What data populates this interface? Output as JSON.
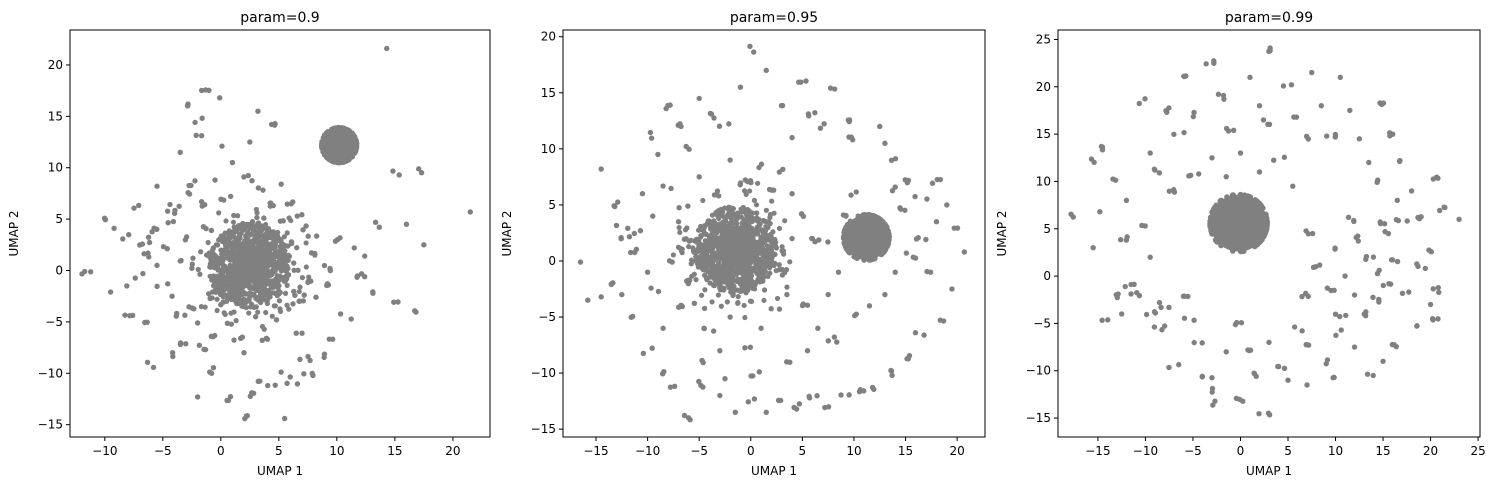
{
  "chart_data": [
    {
      "type": "scatter",
      "title": "param=0.9",
      "xlabel": "UMAP 1",
      "ylabel": "UMAP 2",
      "xlim": [
        -13,
        23.2
      ],
      "ylim": [
        -16.2,
        23.4
      ],
      "xticks": [
        -10,
        -5,
        0,
        5,
        10,
        15,
        20
      ],
      "yticks": [
        -15,
        -10,
        -5,
        0,
        5,
        10,
        15,
        20
      ],
      "marker_color": "#808080",
      "clusters": [
        {
          "center": [
            2.5,
            0.5
          ],
          "radius": 2.8,
          "density": "dense"
        },
        {
          "center": [
            10.2,
            12.2
          ],
          "radius": 1.5,
          "density": "solid"
        }
      ],
      "points": [
        [
          -11.5,
          -0.1
        ],
        [
          -10,
          5.2
        ],
        [
          -9.2,
          4.1
        ],
        [
          -8.1,
          3.3
        ],
        [
          -7.5,
          6.1
        ],
        [
          -6.6,
          3
        ],
        [
          -5.5,
          8.2
        ],
        [
          -4.8,
          2.1
        ],
        [
          -4.1,
          5.6
        ],
        [
          -3.5,
          11.5
        ],
        [
          -3,
          7.5
        ],
        [
          -2.4,
          1.2
        ],
        [
          -1.2,
          6.5
        ],
        [
          -0.5,
          8.8
        ],
        [
          0.1,
          12.1
        ],
        [
          1,
          10.5
        ],
        [
          -1.9,
          13.2
        ],
        [
          -1.2,
          17.4
        ],
        [
          -2.8,
          16.2
        ],
        [
          -1.8,
          14.6
        ],
        [
          -0.1,
          16.8
        ],
        [
          3.2,
          15.5
        ],
        [
          2.5,
          12.5
        ],
        [
          4.2,
          14
        ],
        [
          5.2,
          8.4
        ],
        [
          6,
          6.5
        ],
        [
          7.1,
          4.2
        ],
        [
          8.1,
          1.5
        ],
        [
          9.3,
          -1.3
        ],
        [
          10.2,
          3.1
        ],
        [
          11.5,
          2.2
        ],
        [
          12.1,
          -0.5
        ],
        [
          13,
          -2.1
        ],
        [
          12.4,
          1.4
        ],
        [
          13.5,
          4.5
        ],
        [
          15,
          -3.2
        ],
        [
          16,
          4.5
        ],
        [
          17.2,
          9.8
        ],
        [
          17.5,
          2.5
        ],
        [
          15.3,
          9.5
        ],
        [
          16.3,
          -4.2
        ],
        [
          21.5,
          5.7
        ],
        [
          14.3,
          21.6
        ],
        [
          12.4,
          -0.6
        ],
        [
          10.8,
          -4.5
        ],
        [
          9.5,
          -6.5
        ],
        [
          8.5,
          -8.2
        ],
        [
          7.3,
          -8.5
        ],
        [
          6.5,
          -6.1
        ],
        [
          5.5,
          -10.1
        ],
        [
          4.2,
          -11.2
        ],
        [
          3.1,
          -10.5
        ],
        [
          2.1,
          -14.3
        ],
        [
          5.5,
          -14.4
        ],
        [
          0.5,
          -12.5
        ],
        [
          -1,
          -9.7
        ],
        [
          -2,
          -12.3
        ],
        [
          -3.2,
          -7.2
        ],
        [
          -4.6,
          -8.2
        ],
        [
          -6,
          -9.2
        ],
        [
          -6.5,
          -5.1
        ],
        [
          -8,
          -4.6
        ],
        [
          -9.5,
          -2.1
        ],
        [
          -8.1,
          -1.5
        ],
        [
          -4.2,
          -2.5
        ],
        [
          -3.5,
          -4.2
        ],
        [
          -2,
          -5.1
        ],
        [
          -1,
          -6.2
        ],
        [
          0.5,
          -3.2
        ],
        [
          -0.5,
          -2.6
        ],
        [
          6.5,
          -3.1
        ],
        [
          7.5,
          -1.1
        ],
        [
          8.2,
          -2.6
        ],
        [
          6,
          2.6
        ],
        [
          7,
          -6.1
        ],
        [
          4,
          -6.5
        ],
        [
          2,
          -8
        ],
        [
          1,
          -5.2
        ],
        [
          3,
          -4.5
        ],
        [
          -5.5,
          0.5
        ],
        [
          -6.5,
          1.5
        ],
        [
          -7.2,
          -0.5
        ],
        [
          -3,
          3
        ],
        [
          -2,
          0.5
        ],
        [
          -1,
          4
        ],
        [
          0,
          -1
        ],
        [
          5.5,
          5
        ],
        [
          6.5,
          5.5
        ],
        [
          4.5,
          6.5
        ],
        [
          3.5,
          5
        ],
        [
          -3.8,
          0.8
        ],
        [
          -5,
          -1.5
        ],
        [
          -2.5,
          -3.5
        ],
        [
          0.8,
          2.8
        ],
        [
          -6,
          4
        ],
        [
          -7,
          2.5
        ],
        [
          -4.5,
          4.5
        ],
        [
          7.8,
          3.2
        ],
        [
          9,
          0.2
        ],
        [
          5.8,
          0.5
        ],
        [
          6.8,
          -2.2
        ],
        [
          4.8,
          -4.8
        ],
        [
          1.5,
          -6.5
        ],
        [
          -1.5,
          -7.5
        ],
        [
          -0.8,
          -10
        ],
        [
          2.8,
          -12
        ],
        [
          6.2,
          -11
        ],
        [
          7.5,
          -10.2
        ],
        [
          -4,
          6.5
        ],
        [
          -2.5,
          8.5
        ],
        [
          0.5,
          7
        ],
        [
          2.2,
          9
        ],
        [
          3.2,
          7.8
        ]
      ]
    },
    {
      "type": "scatter",
      "title": "param=0.95",
      "xlabel": "UMAP 1",
      "ylabel": "UMAP 2",
      "xlim": [
        -18.2,
        22.7
      ],
      "ylim": [
        -15.7,
        20.6
      ],
      "xticks": [
        -15,
        -10,
        -5,
        0,
        5,
        10,
        15,
        20
      ],
      "yticks": [
        -15,
        -10,
        -5,
        0,
        5,
        10,
        15,
        20
      ],
      "marker_color": "#808080",
      "clusters": [
        {
          "center": [
            -1.5,
            1
          ],
          "radius": 3.2,
          "density": "dense"
        },
        {
          "center": [
            11.2,
            2.1
          ],
          "radius": 2.2,
          "density": "solid"
        }
      ],
      "points": [
        [
          -16.5,
          -0.1
        ],
        [
          -15.8,
          -3.5
        ],
        [
          -14.5,
          8.2
        ],
        [
          -13,
          5.1
        ],
        [
          -12.5,
          3
        ],
        [
          -11.2,
          2.5
        ],
        [
          -10,
          11.2
        ],
        [
          -9,
          9.5
        ],
        [
          -8,
          13.8
        ],
        [
          -7.2,
          12
        ],
        [
          -6,
          10
        ],
        [
          -5,
          14.5
        ],
        [
          -4,
          13
        ],
        [
          -2.5,
          12
        ],
        [
          -1,
          15.5
        ],
        [
          0,
          18.9
        ],
        [
          1.5,
          17
        ],
        [
          3,
          14
        ],
        [
          4,
          11
        ],
        [
          5,
          16
        ],
        [
          6,
          13
        ],
        [
          7,
          12
        ],
        [
          8,
          15.5
        ],
        [
          9,
          12.5
        ],
        [
          10,
          11
        ],
        [
          12.5,
          12
        ],
        [
          13,
          10.5
        ],
        [
          14,
          9
        ],
        [
          15,
          7
        ],
        [
          16.5,
          5.5
        ],
        [
          18,
          7
        ],
        [
          19,
          5
        ],
        [
          20,
          3
        ],
        [
          20.7,
          0.8
        ],
        [
          19.5,
          -2.5
        ],
        [
          18.5,
          -5.5
        ],
        [
          16.5,
          -6.5
        ],
        [
          15,
          -8.5
        ],
        [
          13.5,
          -10
        ],
        [
          12,
          -11.5
        ],
        [
          10.5,
          -11.5
        ],
        [
          9,
          -12
        ],
        [
          7.5,
          -13
        ],
        [
          6,
          -12
        ],
        [
          4.5,
          -13
        ],
        [
          3,
          -12.5
        ],
        [
          1.5,
          -13.5
        ],
        [
          0,
          -12.5
        ],
        [
          -1.5,
          -13.5
        ],
        [
          -3,
          -12
        ],
        [
          -4.5,
          -11
        ],
        [
          -6,
          -14
        ],
        [
          -7.5,
          -11
        ],
        [
          -9,
          -10
        ],
        [
          -10,
          -8
        ],
        [
          -11.2,
          -5
        ],
        [
          -12.5,
          -3
        ],
        [
          -13.5,
          -2
        ],
        [
          -14.5,
          -3.2
        ],
        [
          -12,
          2
        ],
        [
          -10,
          -1
        ],
        [
          -8,
          0
        ],
        [
          -6.5,
          -2
        ],
        [
          -5,
          -4
        ],
        [
          -4,
          -6
        ],
        [
          -3,
          -8
        ],
        [
          -2,
          -5
        ],
        [
          -0.5,
          -7.5
        ],
        [
          1,
          -6
        ],
        [
          2.5,
          -4.5
        ],
        [
          3.5,
          -3
        ],
        [
          5,
          -4
        ],
        [
          6.5,
          -6
        ],
        [
          7.5,
          -3
        ],
        [
          8.5,
          -1
        ],
        [
          6,
          1.8
        ],
        [
          7,
          1.8
        ],
        [
          5,
          4
        ],
        [
          4,
          6
        ],
        [
          3,
          8
        ],
        [
          2,
          6.5
        ],
        [
          1,
          8.5
        ],
        [
          -0.5,
          7
        ],
        [
          -2,
          9
        ],
        [
          -3.5,
          6
        ],
        [
          -5,
          7.5
        ],
        [
          -6.5,
          5
        ],
        [
          -8,
          6.5
        ],
        [
          -9.5,
          4
        ],
        [
          -10.5,
          6
        ],
        [
          -11.5,
          1
        ],
        [
          -7,
          -4
        ],
        [
          -8.5,
          -6
        ],
        [
          -9.5,
          -2.5
        ],
        [
          -4.5,
          -9
        ],
        [
          -2.5,
          -10.5
        ],
        [
          0.5,
          -10
        ],
        [
          3.5,
          -9
        ],
        [
          5.5,
          -8
        ],
        [
          8,
          -7
        ],
        [
          10,
          -5
        ],
        [
          11.5,
          -4
        ],
        [
          13,
          -3
        ],
        [
          14,
          -1
        ],
        [
          15.5,
          0.5
        ],
        [
          16.5,
          2
        ],
        [
          17.5,
          -1
        ],
        [
          18,
          3.5
        ],
        [
          14.5,
          4.5
        ],
        [
          13.5,
          6.5
        ],
        [
          10,
          6
        ],
        [
          9,
          4
        ],
        [
          2,
          1
        ],
        [
          3,
          -1
        ],
        [
          4,
          2
        ],
        [
          1.5,
          3.5
        ],
        [
          -6,
          2
        ],
        [
          -7,
          3.5
        ],
        [
          -4.5,
          3
        ],
        [
          -5.5,
          0
        ]
      ]
    },
    {
      "type": "scatter",
      "title": "param=0.99",
      "xlabel": "UMAP 1",
      "ylabel": "UMAP 2",
      "xlim": [
        -19.2,
        25.2
      ],
      "ylim": [
        -17,
        26
      ],
      "xticks": [
        -15,
        -10,
        -5,
        0,
        5,
        10,
        15,
        20,
        25
      ],
      "yticks": [
        -15,
        -10,
        -5,
        0,
        5,
        10,
        15,
        20,
        25
      ],
      "marker_color": "#808080",
      "clusters": [
        {
          "center": [
            -0.2,
            5.6
          ],
          "radius": 3,
          "density": "solid"
        }
      ],
      "points": [
        [
          -17.3,
          6.5
        ],
        [
          -15.5,
          3
        ],
        [
          -14.8,
          6.8
        ],
        [
          -15.8,
          12.2
        ],
        [
          -14.8,
          13.5
        ],
        [
          -13,
          10
        ],
        [
          -12,
          8
        ],
        [
          -12,
          4
        ],
        [
          -11.7,
          -1
        ],
        [
          -12.5,
          -4
        ],
        [
          -14.5,
          -4.8
        ],
        [
          -10.2,
          18.5
        ],
        [
          -9.5,
          13
        ],
        [
          -8.5,
          11
        ],
        [
          -7.5,
          17.5
        ],
        [
          -6.5,
          15
        ],
        [
          -5.5,
          21
        ],
        [
          -4.5,
          17
        ],
        [
          -3.2,
          22.5
        ],
        [
          -2,
          19
        ],
        [
          -1,
          15.5
        ],
        [
          0,
          13
        ],
        [
          1,
          21
        ],
        [
          2,
          18
        ],
        [
          3,
          16.2
        ],
        [
          3.5,
          24
        ],
        [
          5,
          20
        ],
        [
          6,
          17
        ],
        [
          7,
          14.5
        ],
        [
          7.5,
          21.5
        ],
        [
          8.5,
          18
        ],
        [
          9.5,
          15
        ],
        [
          10.5,
          21
        ],
        [
          11.5,
          17.5
        ],
        [
          12.5,
          14.5
        ],
        [
          13.5,
          12
        ],
        [
          14.5,
          10
        ],
        [
          15,
          18
        ],
        [
          16,
          15
        ],
        [
          17,
          12
        ],
        [
          18,
          9
        ],
        [
          18.7,
          6
        ],
        [
          19.5,
          2.5
        ],
        [
          20.5,
          -1.5
        ],
        [
          20.8,
          -4.5
        ],
        [
          20.5,
          10.5
        ],
        [
          21.5,
          7
        ],
        [
          23,
          6
        ],
        [
          16.5,
          -7.5
        ],
        [
          15,
          -9
        ],
        [
          13.8,
          -10.5
        ],
        [
          12,
          -7.5
        ],
        [
          10.5,
          -6
        ],
        [
          9,
          -9
        ],
        [
          7.5,
          -7.5
        ],
        [
          6,
          -5.5
        ],
        [
          4.5,
          -9.5
        ],
        [
          3,
          -7
        ],
        [
          1.5,
          -10.5
        ],
        [
          0.5,
          -8
        ],
        [
          -0.5,
          -5
        ],
        [
          -1.5,
          -8
        ],
        [
          -2.5,
          -12
        ],
        [
          -3.5,
          -10.5
        ],
        [
          -4.5,
          -7
        ],
        [
          -5.5,
          -4.5
        ],
        [
          -7,
          -9.5
        ],
        [
          -8.5,
          -5.5
        ],
        [
          -9.5,
          -4
        ],
        [
          -11,
          -1.8
        ],
        [
          -13,
          -2
        ],
        [
          -8,
          -3
        ],
        [
          -6,
          -2.2
        ],
        [
          -3,
          -13.5
        ],
        [
          0,
          -13
        ],
        [
          2.5,
          -14.8
        ],
        [
          5,
          -11
        ],
        [
          7,
          -11.5
        ],
        [
          10,
          -10.5
        ],
        [
          10.5,
          -4
        ],
        [
          12,
          -2
        ],
        [
          11,
          0
        ],
        [
          13.5,
          2
        ],
        [
          14.5,
          0.5
        ],
        [
          15.5,
          -1
        ],
        [
          16.5,
          1.5
        ],
        [
          17.5,
          -2
        ],
        [
          15.5,
          4.5
        ],
        [
          17,
          6
        ],
        [
          16.5,
          8
        ],
        [
          15,
          5.5
        ],
        [
          12.8,
          4
        ],
        [
          12,
          6
        ],
        [
          10.5,
          3
        ],
        [
          9.5,
          -1.5
        ],
        [
          8,
          1
        ],
        [
          6.5,
          -2
        ],
        [
          7,
          4.5
        ],
        [
          13,
          -4
        ],
        [
          14,
          -2.5
        ],
        [
          18.5,
          -5.5
        ],
        [
          19,
          1
        ],
        [
          20,
          -3
        ],
        [
          -9.5,
          2
        ],
        [
          -10.5,
          5.5
        ],
        [
          -7.5,
          9
        ],
        [
          -5,
          10.5
        ],
        [
          -3,
          12.5
        ],
        [
          -1.5,
          10.5
        ],
        [
          2,
          11
        ],
        [
          4,
          12.5
        ],
        [
          5.5,
          9.5
        ]
      ]
    }
  ]
}
